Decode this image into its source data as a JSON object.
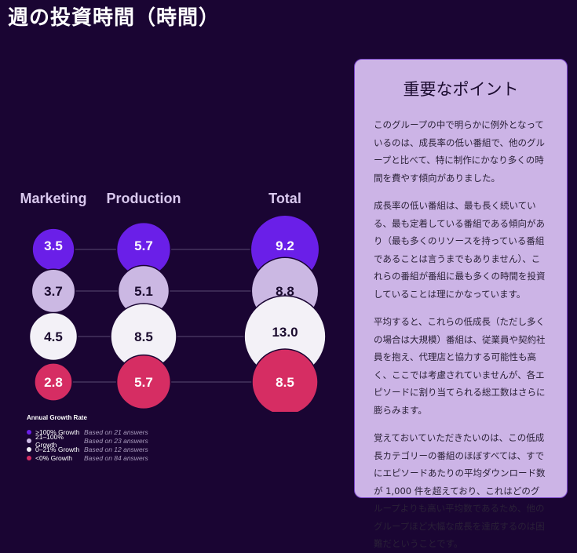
{
  "title": "週の投資時間（時間）",
  "chart_data": {
    "type": "bubble",
    "columns": [
      "Marketing",
      "Production",
      "Total"
    ],
    "groups": [
      {
        "category": ">100% Growth",
        "color": "#6a1fe8",
        "values": [
          3.5,
          5.7,
          9.2
        ]
      },
      {
        "category": "21–100% Growth",
        "color": "#cbb8e3",
        "values": [
          3.7,
          5.1,
          8.8
        ]
      },
      {
        "category": "0–21% Growth",
        "color": "#f3f1f7",
        "values": [
          4.5,
          8.5,
          13.0
        ]
      },
      {
        "category": "<0% Growth",
        "color": "#d62d63",
        "values": [
          2.8,
          5.7,
          8.5
        ]
      }
    ]
  },
  "legend": {
    "title": "Annual Growth Rate",
    "items": [
      {
        "label": ">100% Growth",
        "note": "Based on 21 answers",
        "color": "#6a1fe8"
      },
      {
        "label": "21–100% Growth",
        "note": "Based on 23 answers",
        "color": "#cbb8e3"
      },
      {
        "label": "0–21% Growth",
        "note": "Based on 12 answers",
        "color": "#f3f1f7"
      },
      {
        "label": "<0% Growth",
        "note": "Based on 84 answers",
        "color": "#d62d63"
      }
    ]
  },
  "panel": {
    "title": "重要なポイント",
    "paragraphs": [
      "このグループの中で明らかに例外となっているのは、成長率の低い番組で、他のグループと比べて、特に制作にかなり多くの時間を費やす傾向がありました。",
      "成長率の低い番組は、最も長く続いている、最も定着している番組である傾向があり（最も多くのリソースを持っている番組であることは言うまでもありません）、これらの番組が番組に最も多くの時間を投資していることは理にかなっています。",
      "平均すると、これらの低成長（ただし多くの場合は大規模）番組は、従業員や契約社員を抱え、代理店と協力する可能性も高く、ここでは考慮されていませんが、各エピソードに割り当てられる総工数はさらに膨らみます。",
      "覚えておいていただきたいのは、この低成長カテゴリーの番組のほぼすべては、すでにエピソードあたりの平均ダウンロード数が 1,000 件を超えており、これはどのグループよりも高い平均数であるため、他のグループほど大幅な成長を達成するのは困難だということです。"
    ]
  }
}
